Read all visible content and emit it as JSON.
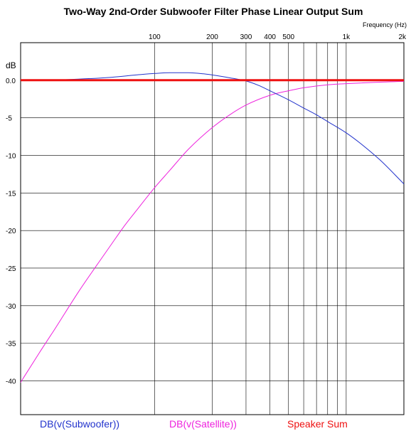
{
  "chart_data": {
    "type": "line",
    "title": "Two-Way 2nd-Order Subwoofer Filter Phase Linear Output Sum",
    "xlabel": "Frequency  (Hz)",
    "ylabel": "dB",
    "xscale": "log",
    "xlim": [
      20,
      2000
    ],
    "ylim": [
      -44.5,
      5
    ],
    "x_tick_labels": [
      {
        "value": 100,
        "label": "100"
      },
      {
        "value": 200,
        "label": "200"
      },
      {
        "value": 300,
        "label": "300"
      },
      {
        "value": 400,
        "label": "400"
      },
      {
        "value": 500,
        "label": "500"
      },
      {
        "value": 1000,
        "label": "1k"
      },
      {
        "value": 2000,
        "label": "2k"
      }
    ],
    "x_gridlines": [
      100,
      200,
      300,
      400,
      500,
      600,
      700,
      800,
      900,
      1000,
      2000
    ],
    "y_ticks": [
      {
        "value": 0,
        "label": "0.0"
      },
      {
        "value": -5,
        "label": "-5"
      },
      {
        "value": -10,
        "label": "-10"
      },
      {
        "value": -15,
        "label": "-15"
      },
      {
        "value": -20,
        "label": "-20"
      },
      {
        "value": -25,
        "label": "-25"
      },
      {
        "value": -30,
        "label": "-30"
      },
      {
        "value": -35,
        "label": "-35"
      },
      {
        "value": -40,
        "label": "-40"
      }
    ],
    "grid": true,
    "legend_position": "bottom",
    "series": [
      {
        "name": "DB(v(Subwoofer))",
        "color": "#2233cc",
        "width": 1,
        "x": [
          20,
          30,
          40,
          60,
          80,
          100,
          120,
          150,
          180,
          200,
          250,
          300,
          350,
          400,
          500,
          600,
          700,
          800,
          1000,
          1200,
          1500,
          2000
        ],
        "y": [
          0.02,
          0.05,
          0.15,
          0.4,
          0.7,
          0.9,
          1.0,
          1.0,
          0.85,
          0.7,
          0.3,
          -0.1,
          -0.7,
          -1.4,
          -2.6,
          -3.7,
          -4.6,
          -5.5,
          -7.0,
          -8.5,
          -10.6,
          -13.8
        ]
      },
      {
        "name": "DB(v(Satellite))",
        "color": "#ee22dd",
        "width": 1,
        "x": [
          20,
          25,
          30,
          40,
          50,
          60,
          70,
          80,
          100,
          120,
          150,
          200,
          250,
          300,
          400,
          500,
          600,
          800,
          1000,
          1500,
          2000
        ],
        "y": [
          -40.2,
          -36.3,
          -33.2,
          -28.2,
          -24.6,
          -21.7,
          -19.3,
          -17.4,
          -14.3,
          -12.0,
          -9.2,
          -6.3,
          -4.5,
          -3.3,
          -2.0,
          -1.4,
          -1.0,
          -0.6,
          -0.45,
          -0.25,
          -0.15
        ]
      },
      {
        "name": "Speaker Sum",
        "color": "#ee1111",
        "width": 3,
        "x": [
          20,
          2000
        ],
        "y": [
          0,
          0
        ]
      }
    ]
  }
}
